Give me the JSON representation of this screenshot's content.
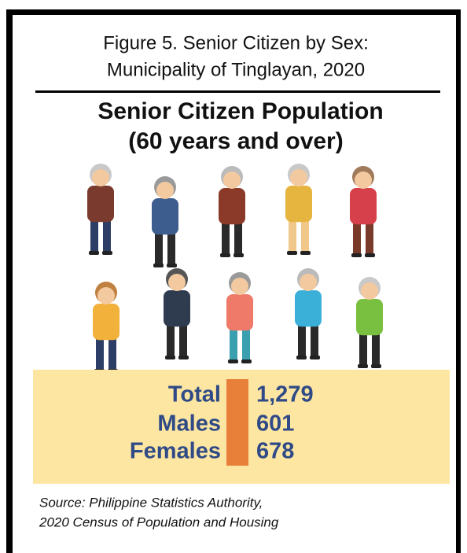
{
  "figure": {
    "title_line1": "Figure 5. Senior Citizen by Sex:",
    "title_line2": "Municipality of Tinglayan, 2020"
  },
  "heading": {
    "line1": "Senior Citizen Population",
    "line2": "(60 years and over)"
  },
  "stats": {
    "rows": [
      {
        "label": "Total",
        "value": "1,279"
      },
      {
        "label": "Males",
        "value": "601"
      },
      {
        "label": "Females",
        "value": "678"
      }
    ]
  },
  "source": {
    "line1": "Source: Philippine Statistics Authority,",
    "line2": "2020 Census of Population and Housing"
  }
}
